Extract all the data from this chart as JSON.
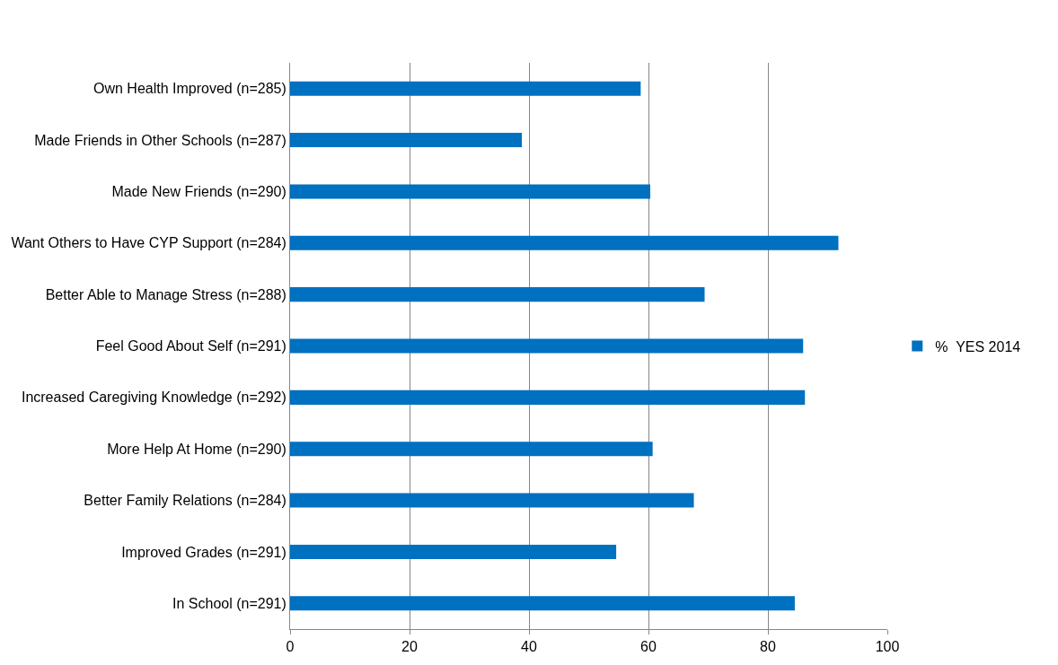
{
  "chart_data": {
    "type": "bar",
    "orientation": "horizontal",
    "categories": [
      "Own Health Improved (n=285)",
      "Made Friends in Other Schools (n=287)",
      "Made New Friends (n=290)",
      "Want Others to Have CYP Support (n=284)",
      "Better Able to Manage Stress (n=288)",
      "Feel Good About Self (n=291)",
      "Increased Caregiving Knowledge (n=292)",
      "More Help At Home (n=290)",
      "Better Family Relations (n=284)",
      "Improved Grades (n=291)",
      "In School (n=291)"
    ],
    "series": [
      {
        "name": "%  YES 2014",
        "color": "#0070c0",
        "values": [
          58.7,
          38.8,
          60.3,
          91.8,
          69.4,
          85.9,
          86.2,
          60.7,
          67.6,
          54.6,
          84.5
        ]
      }
    ],
    "xlim": [
      0,
      100
    ],
    "xticks": [
      0,
      20,
      40,
      60,
      80,
      100
    ],
    "grid": "x",
    "legend": "right"
  }
}
